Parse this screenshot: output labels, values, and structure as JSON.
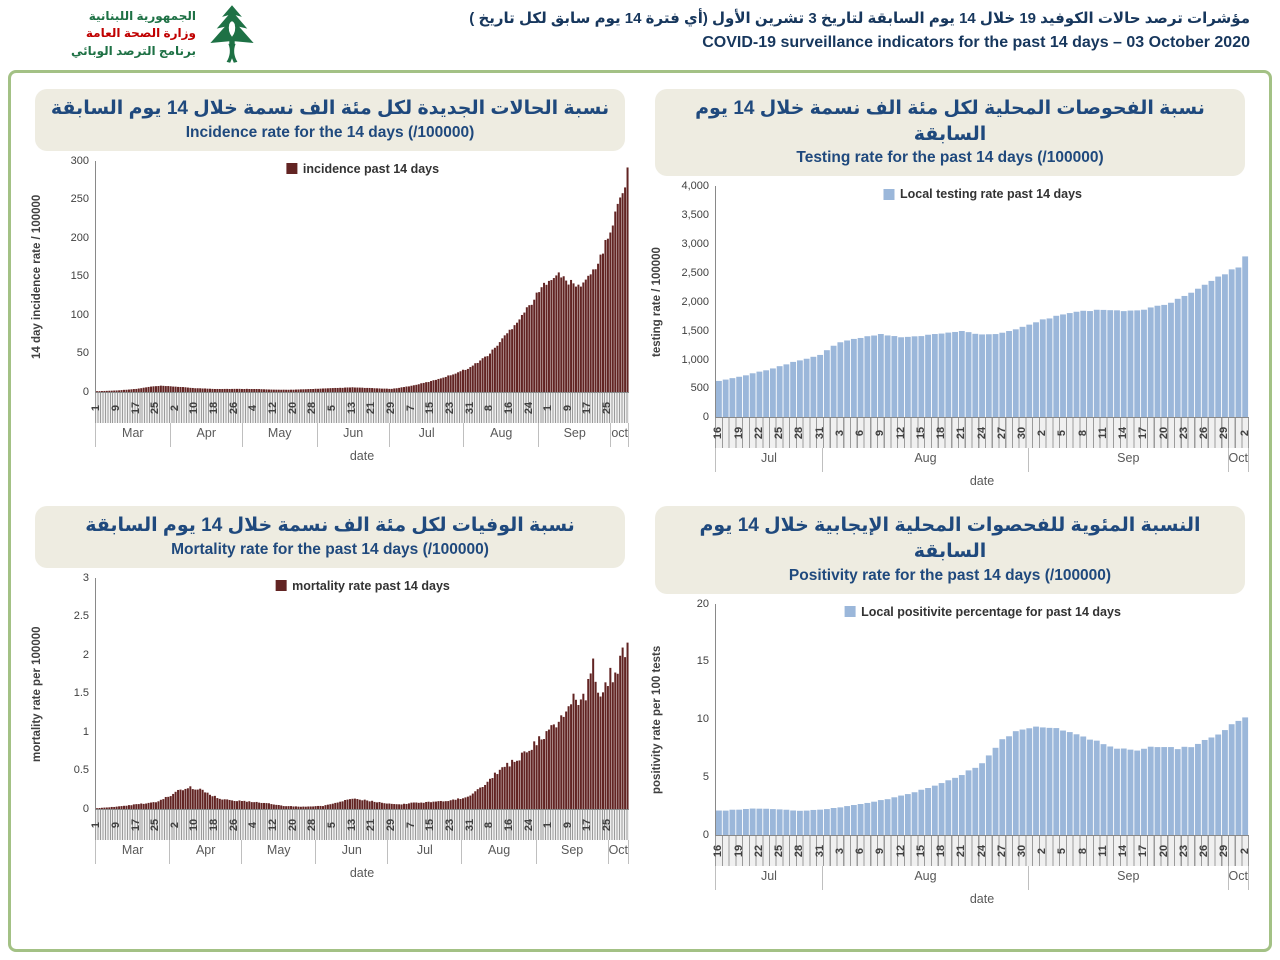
{
  "header": {
    "logo": {
      "line1": "الجمهورية اللبنانية",
      "line2": "وزارة الصحة العامة",
      "line3": "برنامج الترصد الوبائي",
      "icon": "cedar-tree-icon"
    },
    "title_ar": "مؤشرات ترصد حالات الكوفيد 19 خلال  14 يوم السابقة لتاريخ 3 تشرين الأول (أي فترة  14 يوم سابق لكل تاريخ )",
    "title_en": "COVID-19 surveillance indicators for the past 14 days – 03 October 2020"
  },
  "colors": {
    "dark_red": "#622423",
    "light_blue": "#9bb7da",
    "title_text": "#1f497d",
    "title_box_bg": "#eeece1",
    "border_green": "#a3c185",
    "logo_green": "#1e7145",
    "logo_red": "#c00000"
  },
  "chart_data": [
    {
      "type": "bar",
      "panel": "incidence",
      "title_ar": "نسبة الحالات الجديدة لكل مئة الف نسمة خلال 14 يوم السابقة",
      "title_en": "Incidence rate for the 14 days  (/100000)",
      "legend": "incidence past 14 days",
      "series_color": "#622423",
      "ylabel": "14 day incidence rate / 100000",
      "xlabel": "date",
      "ylim": [
        0,
        300
      ],
      "yticks": [
        {
          "v": 0,
          "label": "0"
        },
        {
          "v": 50,
          "label": "50"
        },
        {
          "v": 100,
          "label": "100"
        },
        {
          "v": 150,
          "label": "150"
        },
        {
          "v": 200,
          "label": "200"
        },
        {
          "v": 250,
          "label": "250"
        },
        {
          "v": 300,
          "label": "300"
        }
      ],
      "total_days": 217,
      "x_label_interval_days": 8,
      "x_tick_labels": [
        "1",
        "9",
        "17",
        "25",
        "2",
        "10",
        "18",
        "26",
        "4",
        "12",
        "20",
        "28",
        "5",
        "13",
        "21",
        "29",
        "7",
        "15",
        "23",
        "31",
        "8",
        "16",
        "24",
        "1",
        "9",
        "17",
        "25"
      ],
      "months": [
        {
          "label": "Mar",
          "days": 31
        },
        {
          "label": "Apr",
          "days": 30
        },
        {
          "label": "May",
          "days": 31
        },
        {
          "label": "Jun",
          "days": 30
        },
        {
          "label": "Jul",
          "days": 31
        },
        {
          "label": "Aug",
          "days": 31
        },
        {
          "label": "Sep",
          "days": 30
        },
        {
          "label": "oct",
          "days": 3
        }
      ],
      "jitter": 0.03,
      "keypoints": [
        [
          0,
          1
        ],
        [
          8,
          2
        ],
        [
          16,
          4
        ],
        [
          22,
          7
        ],
        [
          26,
          8
        ],
        [
          32,
          7
        ],
        [
          40,
          5
        ],
        [
          48,
          4
        ],
        [
          56,
          4
        ],
        [
          64,
          4
        ],
        [
          72,
          3
        ],
        [
          80,
          3
        ],
        [
          88,
          4
        ],
        [
          96,
          5
        ],
        [
          104,
          6
        ],
        [
          112,
          5
        ],
        [
          120,
          4
        ],
        [
          128,
          8
        ],
        [
          136,
          14
        ],
        [
          144,
          22
        ],
        [
          152,
          32
        ],
        [
          160,
          50
        ],
        [
          168,
          80
        ],
        [
          176,
          112
        ],
        [
          180,
          130
        ],
        [
          184,
          148
        ],
        [
          188,
          152
        ],
        [
          192,
          143
        ],
        [
          196,
          137
        ],
        [
          200,
          148
        ],
        [
          204,
          168
        ],
        [
          208,
          200
        ],
        [
          212,
          240
        ],
        [
          216,
          285
        ]
      ]
    },
    {
      "type": "bar",
      "panel": "testing",
      "title_ar": "نسبة الفحوصات المحلية لكل مئة الف نسمة خلال 14 يوم السابقة",
      "title_en": "Testing rate for the past 14 days (/100000)",
      "legend": "Local testing rate past 14 days",
      "series_color": "#9bb7da",
      "ylabel": "testing rate / 100000",
      "xlabel": "date",
      "ylim": [
        0,
        4000
      ],
      "yticks": [
        {
          "v": 0,
          "label": "0"
        },
        {
          "v": 500,
          "label": "500"
        },
        {
          "v": 1000,
          "label": "1,000"
        },
        {
          "v": 1500,
          "label": "1,500"
        },
        {
          "v": 2000,
          "label": "2,000"
        },
        {
          "v": 2500,
          "label": "2,500"
        },
        {
          "v": 3000,
          "label": "3,000"
        },
        {
          "v": 3500,
          "label": "3,500"
        },
        {
          "v": 4000,
          "label": "4,000"
        }
      ],
      "total_days": 79,
      "x_label_interval_days": 3,
      "x_tick_labels": [
        "16",
        "19",
        "22",
        "25",
        "28",
        "31",
        "3",
        "6",
        "9",
        "12",
        "15",
        "18",
        "21",
        "24",
        "27",
        "30",
        "2",
        "5",
        "8",
        "11",
        "14",
        "17",
        "20",
        "23",
        "26",
        "29",
        "2"
      ],
      "months": [
        {
          "label": "Jul",
          "days": 16
        },
        {
          "label": "Aug",
          "days": 31
        },
        {
          "label": "Sep",
          "days": 30
        },
        {
          "label": "Oct",
          "days": 2
        }
      ],
      "jitter": 0.008,
      "keypoints": [
        [
          0,
          620
        ],
        [
          3,
          700
        ],
        [
          6,
          780
        ],
        [
          9,
          880
        ],
        [
          12,
          980
        ],
        [
          15,
          1080
        ],
        [
          18,
          1300
        ],
        [
          21,
          1370
        ],
        [
          24,
          1430
        ],
        [
          27,
          1390
        ],
        [
          30,
          1410
        ],
        [
          33,
          1440
        ],
        [
          36,
          1480
        ],
        [
          39,
          1430
        ],
        [
          42,
          1450
        ],
        [
          45,
          1550
        ],
        [
          48,
          1680
        ],
        [
          51,
          1780
        ],
        [
          54,
          1830
        ],
        [
          57,
          1860
        ],
        [
          60,
          1820
        ],
        [
          63,
          1860
        ],
        [
          66,
          1940
        ],
        [
          69,
          2080
        ],
        [
          72,
          2280
        ],
        [
          75,
          2480
        ],
        [
          77,
          2600
        ],
        [
          78,
          2790
        ]
      ]
    },
    {
      "type": "bar",
      "panel": "mortality",
      "title_ar": "نسبة الوفيات لكل مئة الف نسمة خلال 14 يوم السابقة",
      "title_en": "Mortality rate for the past 14 days (/100000)",
      "legend": "mortality rate past 14 days",
      "series_color": "#622423",
      "ylabel": "mortality rate per 100000",
      "xlabel": "date",
      "ylim": [
        0,
        3
      ],
      "yticks": [
        {
          "v": 0,
          "label": "0"
        },
        {
          "v": 0.5,
          "label": "0.5"
        },
        {
          "v": 1,
          "label": "1"
        },
        {
          "v": 1.5,
          "label": "1.5"
        },
        {
          "v": 2,
          "label": "2"
        },
        {
          "v": 2.5,
          "label": "2.5"
        },
        {
          "v": 3,
          "label": "3"
        }
      ],
      "total_days": 217,
      "x_label_interval_days": 8,
      "x_tick_labels": [
        "1",
        "9",
        "17",
        "25",
        "2",
        "10",
        "18",
        "26",
        "4",
        "12",
        "20",
        "28",
        "5",
        "13",
        "21",
        "29",
        "7",
        "15",
        "23",
        "31",
        "8",
        "16",
        "24",
        "1",
        "9",
        "17",
        "25"
      ],
      "months": [
        {
          "label": "Mar",
          "days": 31
        },
        {
          "label": "Apr",
          "days": 30
        },
        {
          "label": "May",
          "days": 31
        },
        {
          "label": "Jun",
          "days": 30
        },
        {
          "label": "Jul",
          "days": 31
        },
        {
          "label": "Aug",
          "days": 31
        },
        {
          "label": "Sep",
          "days": 30
        },
        {
          "label": "Oct",
          "days": 3
        }
      ],
      "jitter": 0.07,
      "keypoints": [
        [
          0,
          0.01
        ],
        [
          8,
          0.03
        ],
        [
          16,
          0.06
        ],
        [
          24,
          0.09
        ],
        [
          30,
          0.18
        ],
        [
          34,
          0.25
        ],
        [
          38,
          0.28
        ],
        [
          42,
          0.26
        ],
        [
          46,
          0.18
        ],
        [
          52,
          0.12
        ],
        [
          60,
          0.1
        ],
        [
          68,
          0.08
        ],
        [
          76,
          0.04
        ],
        [
          84,
          0.03
        ],
        [
          92,
          0.04
        ],
        [
          100,
          0.1
        ],
        [
          104,
          0.14
        ],
        [
          108,
          0.12
        ],
        [
          116,
          0.08
        ],
        [
          124,
          0.06
        ],
        [
          128,
          0.08
        ],
        [
          136,
          0.09
        ],
        [
          144,
          0.11
        ],
        [
          150,
          0.15
        ],
        [
          154,
          0.22
        ],
        [
          158,
          0.32
        ],
        [
          162,
          0.45
        ],
        [
          166,
          0.55
        ],
        [
          170,
          0.62
        ],
        [
          174,
          0.72
        ],
        [
          178,
          0.85
        ],
        [
          182,
          0.95
        ],
        [
          186,
          1.1
        ],
        [
          190,
          1.25
        ],
        [
          194,
          1.45
        ],
        [
          198,
          1.4
        ],
        [
          200,
          1.6
        ],
        [
          202,
          1.88
        ],
        [
          204,
          1.6
        ],
        [
          206,
          1.52
        ],
        [
          208,
          1.68
        ],
        [
          210,
          1.75
        ],
        [
          212,
          1.85
        ],
        [
          214,
          2.0
        ],
        [
          216,
          2.15
        ]
      ]
    },
    {
      "type": "bar",
      "panel": "positivity",
      "title_ar": "النسبة المئوية للفحصوات المحلية الإيجابية خلال 14 يوم السابقة",
      "title_en": "Positivity rate for the past 14 days (/100000)",
      "legend": "Local positivite percentage for past 14 days",
      "series_color": "#9bb7da",
      "ylabel": "positivity rate per 100 tests",
      "xlabel": "date",
      "ylim": [
        0,
        20
      ],
      "yticks": [
        {
          "v": 0,
          "label": "0"
        },
        {
          "v": 5,
          "label": "5"
        },
        {
          "v": 10,
          "label": "10"
        },
        {
          "v": 15,
          "label": "15"
        },
        {
          "v": 20,
          "label": "20"
        }
      ],
      "total_days": 79,
      "x_label_interval_days": 3,
      "x_tick_labels": [
        "16",
        "19",
        "22",
        "25",
        "28",
        "31",
        "3",
        "6",
        "9",
        "12",
        "15",
        "18",
        "21",
        "24",
        "27",
        "30",
        "2",
        "5",
        "8",
        "11",
        "14",
        "17",
        "20",
        "23",
        "26",
        "29",
        "2"
      ],
      "months": [
        {
          "label": "Jul",
          "days": 16
        },
        {
          "label": "Aug",
          "days": 31
        },
        {
          "label": "Sep",
          "days": 30
        },
        {
          "label": "Oct",
          "days": 2
        }
      ],
      "jitter": 0.012,
      "keypoints": [
        [
          0,
          2.1
        ],
        [
          3,
          2.2
        ],
        [
          6,
          2.3
        ],
        [
          9,
          2.2
        ],
        [
          12,
          2.1
        ],
        [
          15,
          2.2
        ],
        [
          18,
          2.4
        ],
        [
          21,
          2.7
        ],
        [
          24,
          3.0
        ],
        [
          27,
          3.4
        ],
        [
          30,
          3.9
        ],
        [
          33,
          4.5
        ],
        [
          36,
          5.2
        ],
        [
          39,
          6.2
        ],
        [
          42,
          8.2
        ],
        [
          44,
          9.0
        ],
        [
          46,
          9.3
        ],
        [
          49,
          9.3
        ],
        [
          52,
          8.9
        ],
        [
          55,
          8.3
        ],
        [
          58,
          7.7
        ],
        [
          60,
          7.4
        ],
        [
          62,
          7.35
        ],
        [
          64,
          7.6
        ],
        [
          66,
          7.7
        ],
        [
          68,
          7.5
        ],
        [
          70,
          7.6
        ],
        [
          72,
          8.2
        ],
        [
          74,
          8.8
        ],
        [
          76,
          9.5
        ],
        [
          78,
          10.1
        ]
      ]
    }
  ]
}
